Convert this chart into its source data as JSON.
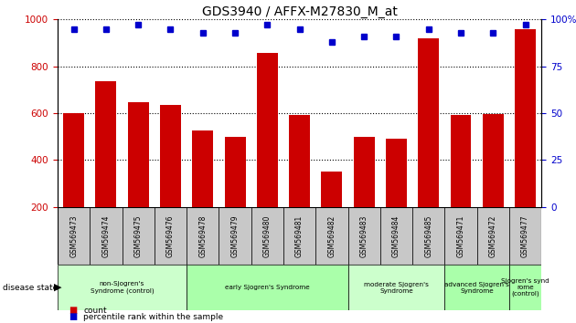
{
  "title": "GDS3940 / AFFX-M27830_M_at",
  "samples": [
    "GSM569473",
    "GSM569474",
    "GSM569475",
    "GSM569476",
    "GSM569478",
    "GSM569479",
    "GSM569480",
    "GSM569481",
    "GSM569482",
    "GSM569483",
    "GSM569484",
    "GSM569485",
    "GSM569471",
    "GSM569472",
    "GSM569477"
  ],
  "counts": [
    600,
    735,
    648,
    635,
    527,
    498,
    858,
    590,
    352,
    498,
    492,
    920,
    590,
    595,
    960
  ],
  "percentile_ranks": [
    95,
    95,
    97,
    95,
    93,
    93,
    97,
    95,
    88,
    91,
    91,
    95,
    93,
    93,
    97
  ],
  "groups": [
    {
      "label": "non-Sjogren's\nSyndrome (control)",
      "start": 0,
      "end": 4,
      "color": "#aaffaa"
    },
    {
      "label": "early Sjogren's Syndrome",
      "start": 4,
      "end": 9,
      "color": "#ccffcc"
    },
    {
      "label": "moderate Sjogren's\nSyndrome",
      "start": 9,
      "end": 12,
      "color": "#aaffaa"
    },
    {
      "label": "advanced Sjogren's\nSyndrome",
      "start": 12,
      "end": 14,
      "color": "#aaffaa"
    },
    {
      "label": "Sjogren's synd\nrome\n(control)",
      "start": 14,
      "end": 15,
      "color": "#aaffaa"
    }
  ],
  "bar_color": "#cc0000",
  "dot_color": "#0000cc",
  "ylim_left": [
    200,
    1000
  ],
  "ylim_right": [
    0,
    100
  ],
  "yticks_left": [
    200,
    400,
    600,
    800,
    1000
  ],
  "yticks_right": [
    0,
    25,
    50,
    75,
    100
  ],
  "grid_values": [
    400,
    600,
    800,
    1000
  ],
  "bar_width": 0.65,
  "sample_label_bg": "#c8c8c8",
  "figure_bg": "#ffffff"
}
